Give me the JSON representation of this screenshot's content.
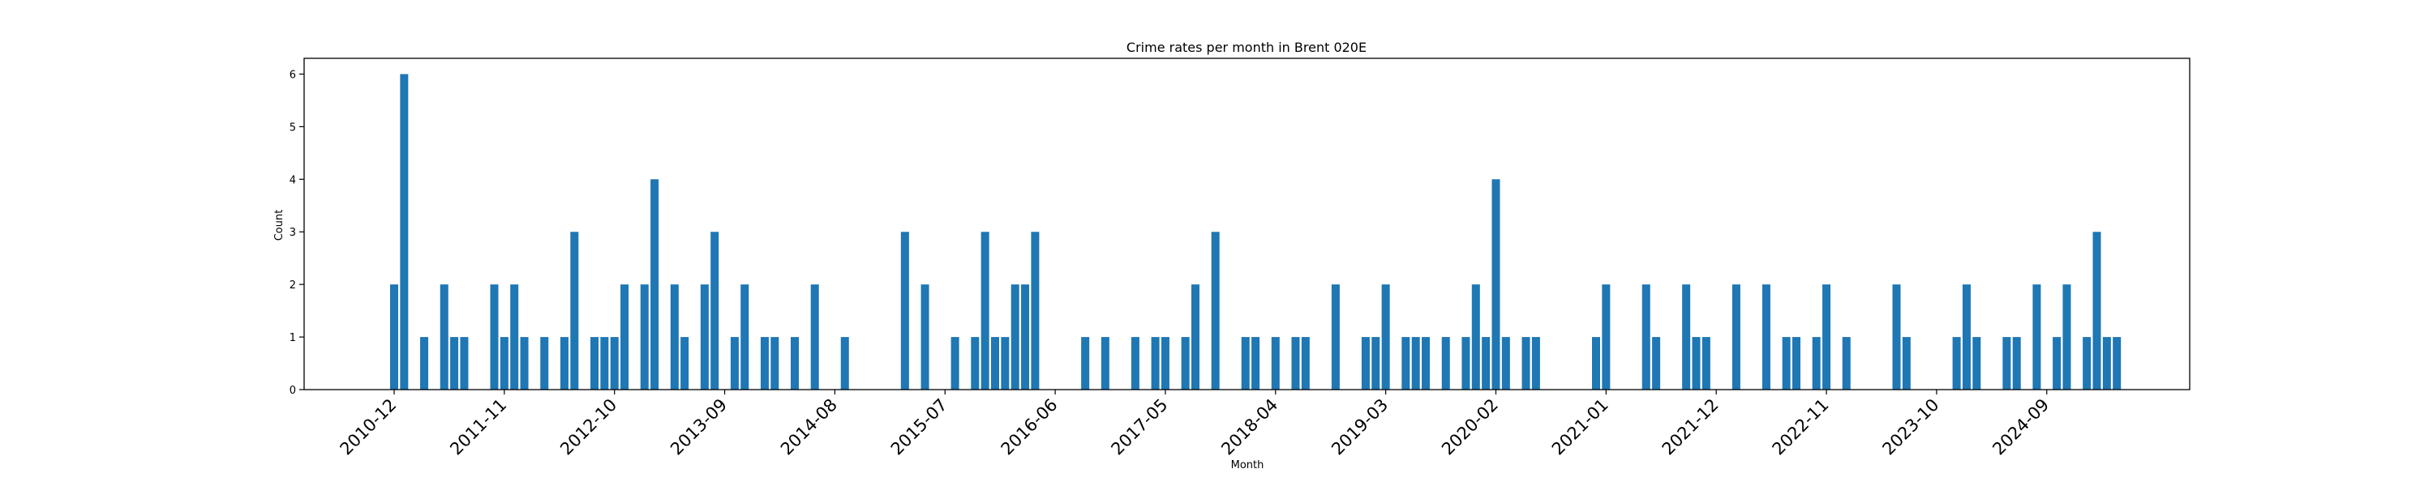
{
  "chart_data": {
    "type": "bar",
    "title": "Crime rates per month in Brent 020E",
    "xlabel": "Month",
    "ylabel": "Count",
    "ylim": [
      0,
      6.3
    ],
    "yticks": [
      0,
      1,
      2,
      3,
      4,
      5,
      6
    ],
    "xtick_labels": [
      "2010-12",
      "2011-11",
      "2012-10",
      "2013-09",
      "2014-08",
      "2015-07",
      "2016-06",
      "2017-05",
      "2018-04",
      "2019-03",
      "2020-02",
      "2021-01",
      "2021-12",
      "2022-11",
      "2023-10",
      "2024-09"
    ],
    "grid": false,
    "color": "#1f77b4",
    "categories": [
      "2010-12",
      "2011-01",
      "2011-03",
      "2011-05",
      "2011-06",
      "2011-07",
      "2011-10",
      "2011-11",
      "2011-12",
      "2012-01",
      "2012-03",
      "2012-05",
      "2012-06",
      "2012-08",
      "2012-09",
      "2012-10",
      "2012-11",
      "2013-01",
      "2013-02",
      "2013-04",
      "2013-05",
      "2013-07",
      "2013-08",
      "2013-10",
      "2013-11",
      "2014-01",
      "2014-02",
      "2014-04",
      "2014-06",
      "2014-09",
      "2015-03",
      "2015-05",
      "2015-08",
      "2015-10",
      "2015-11",
      "2015-12",
      "2016-01",
      "2016-02",
      "2016-03",
      "2016-04",
      "2016-09",
      "2016-11",
      "2017-02",
      "2017-04",
      "2017-05",
      "2017-07",
      "2017-08",
      "2017-10",
      "2018-01",
      "2018-02",
      "2018-04",
      "2018-06",
      "2018-07",
      "2018-10",
      "2019-01",
      "2019-02",
      "2019-03",
      "2019-05",
      "2019-06",
      "2019-07",
      "2019-09",
      "2019-11",
      "2019-12",
      "2020-01",
      "2020-02",
      "2020-03",
      "2020-05",
      "2020-06",
      "2020-12",
      "2021-01",
      "2021-05",
      "2021-06",
      "2021-09",
      "2021-10",
      "2021-11",
      "2022-02",
      "2022-05",
      "2022-07",
      "2022-08",
      "2022-10",
      "2022-11",
      "2023-01",
      "2023-06",
      "2023-07",
      "2023-12",
      "2024-01",
      "2024-02",
      "2024-05",
      "2024-06",
      "2024-08",
      "2024-10",
      "2024-11",
      "2025-01",
      "2025-02",
      "2025-03",
      "2025-04"
    ],
    "values": [
      2,
      6,
      1,
      2,
      1,
      1,
      2,
      1,
      2,
      1,
      1,
      1,
      3,
      1,
      1,
      1,
      2,
      2,
      4,
      2,
      1,
      2,
      3,
      1,
      2,
      1,
      1,
      1,
      2,
      1,
      3,
      2,
      1,
      1,
      3,
      1,
      1,
      2,
      2,
      3,
      1,
      1,
      1,
      1,
      1,
      1,
      2,
      3,
      1,
      1,
      1,
      1,
      1,
      2,
      1,
      1,
      2,
      1,
      1,
      1,
      1,
      1,
      2,
      1,
      4,
      1,
      1,
      1,
      1,
      2,
      2,
      1,
      2,
      1,
      1,
      2,
      2,
      1,
      1,
      1,
      2,
      1,
      2,
      1,
      1,
      2,
      1,
      1,
      1,
      2,
      1,
      2,
      1,
      3,
      1,
      1
    ]
  }
}
